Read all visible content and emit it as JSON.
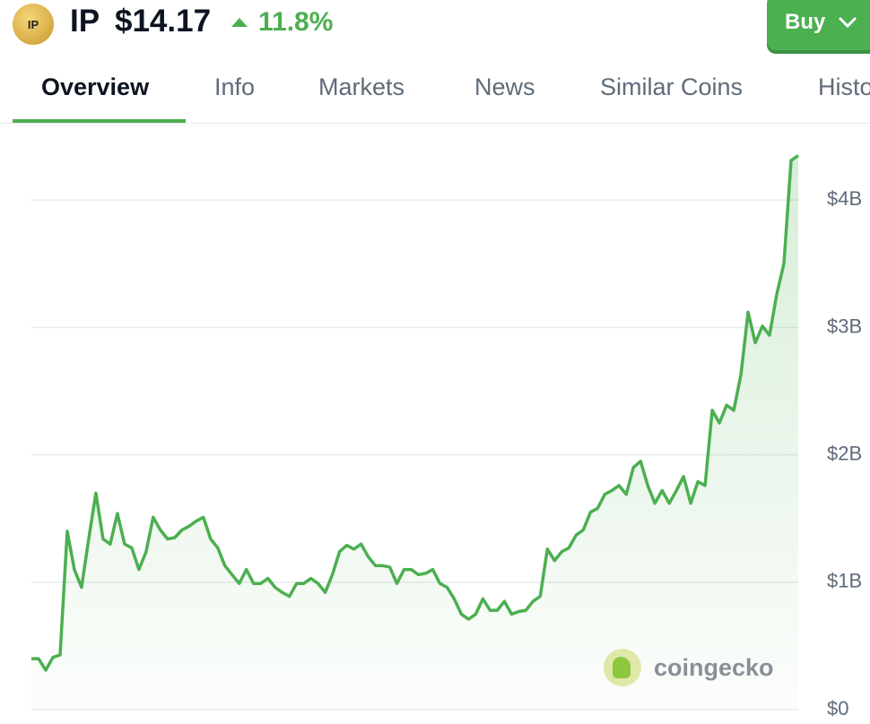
{
  "header": {
    "logo_text": "IP",
    "symbol": "IP",
    "price": "$14.17",
    "change": "11.8%",
    "buy_button": "Buy"
  },
  "tabs": [
    "Overview",
    "Info",
    "Markets",
    "News",
    "Similar Coins",
    "History"
  ],
  "active_tab": 0,
  "watermark": "coingecko",
  "chart_data": {
    "type": "area",
    "color": "#4caf50",
    "values": [
      0.4,
      0.4,
      0.31,
      0.41,
      0.43,
      1.4,
      1.1,
      0.96,
      1.34,
      1.7,
      1.34,
      1.3,
      1.54,
      1.3,
      1.27,
      1.1,
      1.24,
      1.51,
      1.41,
      1.34,
      1.35,
      1.41,
      1.44,
      1.48,
      1.51,
      1.34,
      1.27,
      1.13,
      1.06,
      0.99,
      1.1,
      0.99,
      0.99,
      1.03,
      0.96,
      0.92,
      0.89,
      0.99,
      0.99,
      1.03,
      0.99,
      0.92,
      1.06,
      1.24,
      1.29,
      1.26,
      1.3,
      1.2,
      1.13,
      1.13,
      1.12,
      0.99,
      1.1,
      1.1,
      1.06,
      1.07,
      1.1,
      0.99,
      0.96,
      0.87,
      0.75,
      0.71,
      0.75,
      0.87,
      0.78,
      0.78,
      0.85,
      0.75,
      0.77,
      0.78,
      0.85,
      0.89,
      1.26,
      1.17,
      1.24,
      1.27,
      1.37,
      1.41,
      1.55,
      1.58,
      1.69,
      1.72,
      1.76,
      1.69,
      1.9,
      1.95,
      1.76,
      1.62,
      1.72,
      1.62,
      1.72,
      1.83,
      1.62,
      1.79,
      1.76,
      2.35,
      2.25,
      2.39,
      2.35,
      2.63,
      3.12,
      2.88,
      3.01,
      2.94,
      3.26,
      3.5,
      4.31,
      4.35
    ],
    "ylim": [
      0,
      4.48
    ],
    "yticks": [
      {
        "value": 0,
        "label": "$0"
      },
      {
        "value": 1,
        "label": "$1B"
      },
      {
        "value": 2,
        "label": "$2B"
      },
      {
        "value": 3,
        "label": "$3B"
      },
      {
        "value": 4,
        "label": "$4B"
      }
    ],
    "grid": true
  }
}
